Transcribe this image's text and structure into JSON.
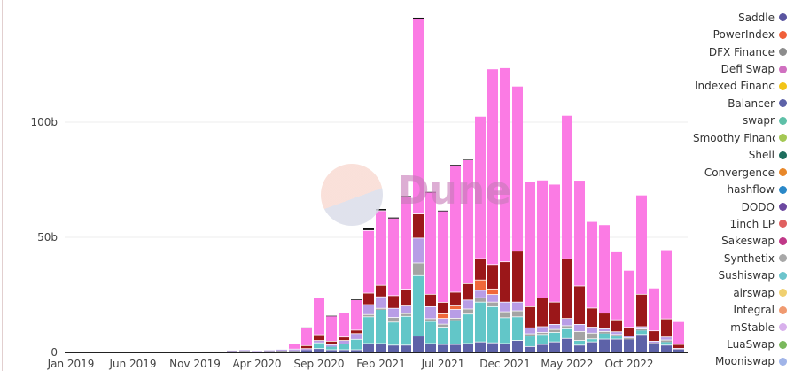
{
  "watermark": {
    "text": "Dune"
  },
  "chart_data": {
    "type": "bar",
    "stacked": true,
    "title": "",
    "xlabel": "",
    "ylabel": "",
    "ylim": [
      0,
      150000000000
    ],
    "y_ticks": [
      {
        "value": 0,
        "label": "0"
      },
      {
        "value": 50000000000,
        "label": "50b"
      },
      {
        "value": 100000000000,
        "label": "100b"
      }
    ],
    "x_ticks": [
      {
        "index": 0,
        "label": "Jan 2019"
      },
      {
        "index": 5,
        "label": "Jun 2019"
      },
      {
        "index": 10,
        "label": "Nov 2019"
      },
      {
        "index": 15,
        "label": "Apr 2020"
      },
      {
        "index": 20,
        "label": "Sep 2020"
      },
      {
        "index": 25,
        "label": "Feb 2021"
      },
      {
        "index": 30,
        "label": "Jul 2021"
      },
      {
        "index": 35,
        "label": "Dec 2021"
      },
      {
        "index": 40,
        "label": "May 2022"
      },
      {
        "index": 45,
        "label": "Oct 2022"
      }
    ],
    "grid": true,
    "legend_position": "right",
    "unit": "billions",
    "categories": [
      "2019-01",
      "2019-02",
      "2019-03",
      "2019-04",
      "2019-05",
      "2019-06",
      "2019-07",
      "2019-08",
      "2019-09",
      "2019-10",
      "2019-11",
      "2019-12",
      "2020-01",
      "2020-02",
      "2020-03",
      "2020-04",
      "2020-05",
      "2020-06",
      "2020-07",
      "2020-08",
      "2020-09",
      "2020-10",
      "2020-11",
      "2020-12",
      "2021-01",
      "2021-02",
      "2021-03",
      "2021-04",
      "2021-05",
      "2021-06",
      "2021-07",
      "2021-08",
      "2021-09",
      "2021-10",
      "2021-11",
      "2021-12",
      "2022-01",
      "2022-02",
      "2022-03",
      "2022-04",
      "2022-05",
      "2022-06",
      "2022-07",
      "2022-08",
      "2022-09",
      "2022-10",
      "2022-11",
      "2022-12",
      "2023-01",
      "2023-02"
    ],
    "series": [
      {
        "name": "Balancer",
        "color": "#5d62a8",
        "values": [
          0.1,
          0.1,
          0.1,
          0.1,
          0.1,
          0.1,
          0.1,
          0.1,
          0.1,
          0.1,
          0.1,
          0.1,
          0.1,
          0.2,
          0.2,
          0.1,
          0.2,
          0.3,
          0.5,
          1,
          1.5,
          1,
          1,
          1,
          3.7,
          3.7,
          3,
          3,
          6.9,
          3.7,
          3.3,
          3.3,
          3.7,
          4.4,
          4,
          3.7,
          5,
          2.4,
          3.3,
          4.4,
          5.9,
          3,
          4.4,
          5.6,
          5.6,
          5.6,
          7.6,
          3.7,
          3,
          1.2
        ]
      },
      {
        "name": "Sushiswap",
        "color": "#62c6c8",
        "values": [
          0,
          0,
          0,
          0,
          0,
          0,
          0,
          0,
          0,
          0,
          0,
          0,
          0,
          0,
          0,
          0,
          0,
          0,
          0,
          0,
          2.5,
          1.5,
          2.5,
          4.5,
          11.6,
          14.8,
          10,
          12.5,
          26.3,
          9.6,
          7.5,
          10.7,
          12.8,
          17.3,
          15.7,
          11.2,
          10.3,
          4.5,
          4.3,
          4.1,
          4.2,
          2,
          1.3,
          2.6,
          1.3,
          0,
          1.9,
          0,
          1.5,
          0
        ]
      },
      {
        "name": "Synthetix",
        "color": "#a4a4a4",
        "values": [
          0.1,
          0.1,
          0.1,
          0.1,
          0.1,
          0.1,
          0.1,
          0.1,
          0.2,
          0.2,
          0.2,
          0.3,
          0.3,
          0.4,
          0.5,
          0.3,
          0.4,
          0.5,
          0.3,
          0,
          0,
          0,
          0,
          0,
          1,
          0.5,
          2,
          1.2,
          5.5,
          1.2,
          1.3,
          0.7,
          2.2,
          1.9,
          2,
          2.6,
          2.6,
          1,
          0.9,
          1.3,
          1.3,
          3.9,
          2.5,
          0.7,
          0.7,
          0.5,
          0.5,
          0.4,
          0.7,
          0.2
        ]
      },
      {
        "name": "mStable",
        "color": "#b89de6",
        "values": [
          0,
          0,
          0,
          0,
          0,
          0,
          0,
          0,
          0,
          0,
          0,
          0,
          0,
          0.2,
          0.3,
          0.2,
          0.3,
          0.4,
          0.5,
          0.5,
          1,
          0.7,
          1.5,
          2.5,
          4.3,
          5,
          4,
          3.3,
          10.8,
          5.2,
          2.5,
          3.8,
          3.9,
          3.2,
          3.3,
          4.2,
          3.8,
          2.6,
          2.5,
          2.2,
          3.2,
          3.1,
          2.6,
          1.2,
          1.2,
          0.8,
          1,
          0.6,
          1.3,
          0.2
        ]
      },
      {
        "name": "Integral",
        "color": "#f0683a",
        "values": [
          0,
          0,
          0,
          0,
          0,
          0,
          0,
          0,
          0,
          0,
          0,
          0,
          0,
          0,
          0,
          0,
          0,
          0,
          0,
          0,
          0,
          0,
          0,
          0,
          0,
          0,
          0,
          0,
          0,
          0,
          2,
          1.5,
          0,
          4.5,
          2.4,
          0,
          0,
          0,
          0,
          0,
          0,
          0,
          0,
          0,
          0,
          0,
          0,
          0,
          0,
          0
        ]
      },
      {
        "name": "",
        "color": "#9b1719",
        "values": [
          0,
          0,
          0,
          0,
          0,
          0,
          0,
          0,
          0,
          0,
          0,
          0,
          0,
          0,
          0,
          0,
          0,
          0,
          0,
          1.3,
          2.5,
          1.5,
          1.5,
          1.5,
          5,
          5,
          5.5,
          7.3,
          10.5,
          5.4,
          5,
          6,
          7.1,
          9.3,
          10.6,
          17.5,
          22.1,
          9.2,
          12.5,
          9.7,
          25.9,
          16.7,
          8.3,
          6.8,
          5.2,
          3.8,
          14.1,
          4.5,
          7.9,
          1.7
        ]
      },
      {
        "name": "",
        "color": "#fb7be4",
        "values": [
          0,
          0,
          0,
          0,
          0,
          0,
          0,
          0,
          0,
          0,
          0,
          0,
          0,
          0,
          0,
          0,
          0,
          0,
          2.5,
          7.7,
          16,
          11,
          10.5,
          13.2,
          27.2,
          32.4,
          33.7,
          40,
          84.7,
          44.4,
          39.7,
          55.2,
          53.8,
          61.8,
          85,
          84.3,
          71.7,
          54.5,
          51.2,
          51.2,
          62.3,
          45.9,
          37.6,
          38.4,
          29.5,
          24.8,
          43.1,
          18.6,
          30,
          9.9
        ]
      },
      {
        "name": "",
        "color": "#111111",
        "values": [
          0,
          0,
          0,
          0,
          0,
          0,
          0,
          0,
          0,
          0,
          0,
          0,
          0,
          0,
          0,
          0,
          0,
          0,
          0,
          0.3,
          0.2,
          0.2,
          0.2,
          0.3,
          1.3,
          0.9,
          0.4,
          0.6,
          0.7,
          0.2,
          0.3,
          0.3,
          0.2,
          0,
          0,
          0,
          0,
          0,
          0,
          0,
          0,
          0,
          0,
          0,
          0,
          0,
          0,
          0,
          0,
          0
        ]
      }
    ]
  },
  "legend": [
    {
      "label": "Saddle",
      "color": "#5a55a0"
    },
    {
      "label": "PowerIndex",
      "color": "#f0603a"
    },
    {
      "label": "DFX Finance",
      "color": "#8c8c8c"
    },
    {
      "label": "Defi Swap",
      "color": "#d070c0"
    },
    {
      "label": "Indexed Financ",
      "color": "#f2c418"
    },
    {
      "label": "Balancer",
      "color": "#5d62a8"
    },
    {
      "label": "swapr",
      "color": "#5ec0a8"
    },
    {
      "label": "Smoothy Financ",
      "color": "#a4c854"
    },
    {
      "label": "Shell",
      "color": "#1e6e5e"
    },
    {
      "label": "Convergence",
      "color": "#e8882a"
    },
    {
      "label": "hashflow",
      "color": "#2a88c8"
    },
    {
      "label": "DODO",
      "color": "#6c48a0"
    },
    {
      "label": "1inch LP",
      "color": "#e06060"
    },
    {
      "label": "Sakeswap",
      "color": "#c03888"
    },
    {
      "label": "Synthetix",
      "color": "#a8a8a8"
    },
    {
      "label": "Sushiswap",
      "color": "#6cc4cc"
    },
    {
      "label": "airswap",
      "color": "#f0d070"
    },
    {
      "label": "Integral",
      "color": "#f09a70"
    },
    {
      "label": "mStable",
      "color": "#d8b0ec"
    },
    {
      "label": "LuaSwap",
      "color": "#7ab85c"
    },
    {
      "label": "Mooniswap",
      "color": "#a0b4e8"
    }
  ]
}
